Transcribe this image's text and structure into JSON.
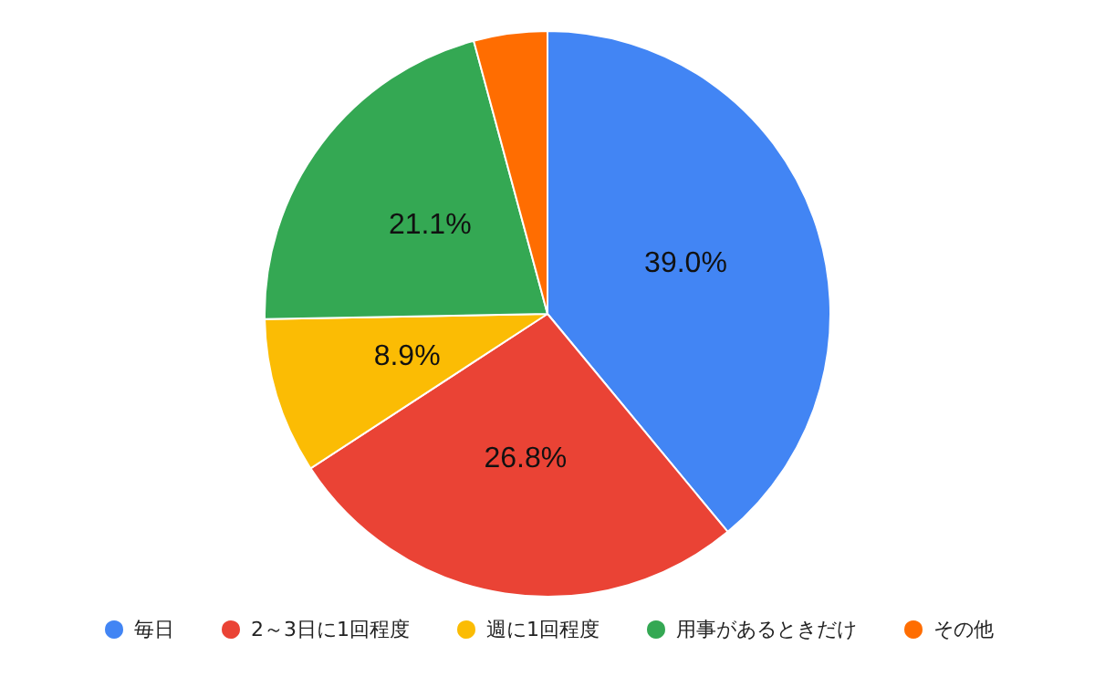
{
  "chart_data": {
    "type": "pie",
    "categories": [
      "毎日",
      "2～3日に1回程度",
      "週に1回程度",
      "用事があるときだけ",
      "その他"
    ],
    "values": [
      39.0,
      26.8,
      8.9,
      21.1,
      4.2
    ],
    "colors": [
      "#4285f4",
      "#ea4335",
      "#fbbc04",
      "#34a853",
      "#ff6d01"
    ],
    "value_labels": [
      "39.0%",
      "26.8%",
      "8.9%",
      "21.1%",
      null
    ],
    "legend": "bottom"
  }
}
